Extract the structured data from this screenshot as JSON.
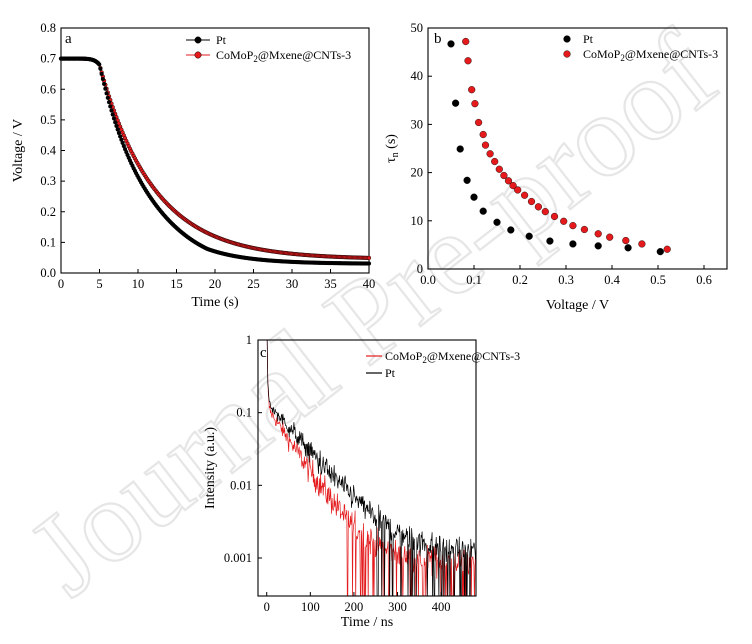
{
  "watermark": "Journal Pre-proof",
  "colors": {
    "pt": "#000000",
    "como": "#e41a1c"
  },
  "chart_data": [
    {
      "type": "scatter",
      "panel_label": "a",
      "xlabel": "Time (s)",
      "ylabel": "Voltage / V",
      "xlim": [
        0,
        40
      ],
      "ylim": [
        0,
        0.8
      ],
      "xticks": [
        "0",
        "5",
        "10",
        "15",
        "20",
        "25",
        "30",
        "35",
        "40"
      ],
      "yticks": [
        "0.0",
        "0.1",
        "0.2",
        "0.3",
        "0.4",
        "0.5",
        "0.6",
        "0.7",
        "0.8"
      ],
      "legend_position": "top-right",
      "series": [
        {
          "name": "Pt",
          "model": {
            "plateau": 0.7,
            "t_drop": 5.0,
            "v_start": 0.68,
            "v_end": 0.03,
            "tau": 5.4,
            "curve": 0.045
          },
          "samples": [
            [
              0,
              0.7
            ],
            [
              5,
              0.68
            ],
            [
              10,
              0.3
            ],
            [
              15,
              0.12
            ],
            [
              20,
              0.055
            ],
            [
              25,
              0.04
            ],
            [
              30,
              0.035
            ],
            [
              40,
              0.03
            ]
          ]
        },
        {
          "name": "CoMoP2@Mxene@CNTs-3",
          "model": {
            "plateau": 0.7,
            "t_drop": 5.0,
            "v_start": 0.68,
            "v_end": 0.045,
            "tau": 7.0,
            "curve": 0.0
          },
          "samples": [
            [
              0,
              0.7
            ],
            [
              5,
              0.68
            ],
            [
              10,
              0.38
            ],
            [
              15,
              0.22
            ],
            [
              20,
              0.14
            ],
            [
              25,
              0.095
            ],
            [
              30,
              0.07
            ],
            [
              40,
              0.048
            ]
          ]
        }
      ]
    },
    {
      "type": "scatter",
      "panel_label": "b",
      "xlabel": "Voltage / V",
      "ylabel": "τn (s)",
      "xlim": [
        0,
        0.65
      ],
      "ylim": [
        0,
        50
      ],
      "xticks": [
        "0.0",
        "0.1",
        "0.2",
        "0.3",
        "0.4",
        "0.5",
        "0.6"
      ],
      "yticks": [
        "0",
        "10",
        "20",
        "30",
        "40",
        "50"
      ],
      "legend_position": "top-right",
      "series": [
        {
          "name": "Pt",
          "points": [
            [
              0.05,
              46.7
            ],
            [
              0.06,
              34.4
            ],
            [
              0.07,
              24.9
            ],
            [
              0.085,
              18.4
            ],
            [
              0.1,
              14.9
            ],
            [
              0.12,
              12.0
            ],
            [
              0.15,
              9.7
            ],
            [
              0.18,
              8.1
            ],
            [
              0.22,
              6.8
            ],
            [
              0.265,
              5.8
            ],
            [
              0.315,
              5.2
            ],
            [
              0.37,
              4.8
            ],
            [
              0.435,
              4.4
            ],
            [
              0.505,
              3.6
            ]
          ]
        },
        {
          "name": "CoMoP2@Mxene@CNTs-3",
          "points": [
            [
              0.082,
              47.2
            ],
            [
              0.087,
              43.2
            ],
            [
              0.095,
              37.2
            ],
            [
              0.102,
              34.3
            ],
            [
              0.11,
              30.4
            ],
            [
              0.12,
              27.9
            ],
            [
              0.125,
              25.7
            ],
            [
              0.135,
              23.9
            ],
            [
              0.145,
              22.3
            ],
            [
              0.155,
              20.7
            ],
            [
              0.165,
              19.4
            ],
            [
              0.175,
              18.3
            ],
            [
              0.185,
              17.3
            ],
            [
              0.195,
              16.4
            ],
            [
              0.21,
              15.3
            ],
            [
              0.225,
              14.0
            ],
            [
              0.24,
              12.9
            ],
            [
              0.255,
              11.9
            ],
            [
              0.275,
              10.9
            ],
            [
              0.295,
              9.9
            ],
            [
              0.315,
              9.0
            ],
            [
              0.34,
              8.2
            ],
            [
              0.37,
              7.3
            ],
            [
              0.395,
              6.6
            ],
            [
              0.43,
              5.9
            ],
            [
              0.465,
              5.2
            ],
            [
              0.52,
              4.1
            ]
          ]
        }
      ]
    },
    {
      "type": "line",
      "panel_label": "c",
      "xlabel": "Time / ns",
      "ylabel": "Intensity (a.u.)",
      "xlim": [
        -20,
        480
      ],
      "ylim": [
        0.0003,
        1
      ],
      "yscale": "log",
      "xticks": [
        "0",
        "100",
        "200",
        "300",
        "400"
      ],
      "yticks": [
        "1",
        "0.1",
        "0.01",
        "0.001"
      ],
      "legend_position": "top-right",
      "series": [
        {
          "name": "CoMoP2@Mxene@CNTs-3",
          "model": {
            "a1": 0.7,
            "tau1": 1.5,
            "a2": 0.12,
            "tau2": 48,
            "bg": 0.0009,
            "noise": 0.45
          }
        },
        {
          "name": "Pt",
          "model": {
            "a1": 0.7,
            "tau1": 1.5,
            "a2": 0.14,
            "tau2": 62,
            "bg": 0.0012,
            "noise": 0.4
          }
        }
      ]
    }
  ]
}
